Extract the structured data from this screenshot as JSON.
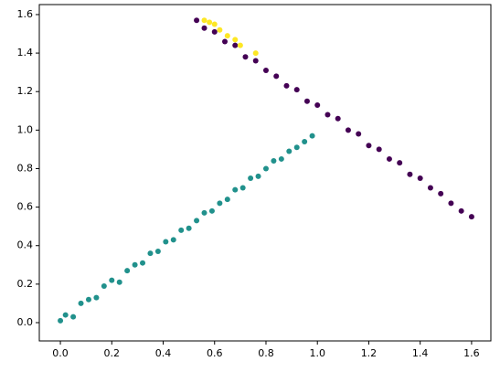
{
  "chart_data": {
    "type": "scatter",
    "xlim": [
      -0.082,
      1.675
    ],
    "ylim": [
      -0.095,
      1.652
    ],
    "xticks": [
      {
        "value": 0,
        "label": "0.0"
      },
      {
        "value": 0.2,
        "label": "0.2"
      },
      {
        "value": 0.4,
        "label": "0.4"
      },
      {
        "value": 0.6,
        "label": "0.6"
      },
      {
        "value": 0.8,
        "label": "0.8"
      },
      {
        "value": 1,
        "label": "1.0"
      },
      {
        "value": 1.2,
        "label": "1.2"
      },
      {
        "value": 1.4,
        "label": "1.4"
      },
      {
        "value": 1.6,
        "label": "1.6"
      }
    ],
    "yticks": [
      {
        "value": 0,
        "label": "0.0"
      },
      {
        "value": 0.2,
        "label": "0.2"
      },
      {
        "value": 0.4,
        "label": "0.4"
      },
      {
        "value": 0.6,
        "label": "0.6"
      },
      {
        "value": 0.8,
        "label": "0.8"
      },
      {
        "value": 1,
        "label": "1.0"
      },
      {
        "value": 1.2,
        "label": "1.2"
      },
      {
        "value": 1.4,
        "label": "1.4"
      },
      {
        "value": 1.6,
        "label": "1.6"
      }
    ],
    "grid": false,
    "series": [
      {
        "color": "#21918c",
        "x": [
          0.0,
          0.02,
          0.05,
          0.08,
          0.11,
          0.14,
          0.17,
          0.2,
          0.23,
          0.26,
          0.29,
          0.32,
          0.35,
          0.38,
          0.41,
          0.44,
          0.47,
          0.5,
          0.53,
          0.56,
          0.59,
          0.62,
          0.65,
          0.68,
          0.71,
          0.74,
          0.77,
          0.8,
          0.83,
          0.86,
          0.89,
          0.92,
          0.95,
          0.98
        ],
        "y": [
          0.01,
          0.04,
          0.03,
          0.1,
          0.12,
          0.13,
          0.19,
          0.22,
          0.21,
          0.27,
          0.3,
          0.31,
          0.36,
          0.37,
          0.42,
          0.43,
          0.48,
          0.49,
          0.53,
          0.57,
          0.58,
          0.62,
          0.64,
          0.69,
          0.7,
          0.75,
          0.76,
          0.8,
          0.84,
          0.85,
          0.89,
          0.91,
          0.94,
          0.97
        ]
      },
      {
        "color": "#440154",
        "x": [
          0.53,
          0.56,
          0.6,
          0.64,
          0.68,
          0.72,
          0.76,
          0.8,
          0.84,
          0.88,
          0.92,
          0.96,
          1.0,
          1.04,
          1.08,
          1.12,
          1.16,
          1.2,
          1.24,
          1.28,
          1.32,
          1.36,
          1.4,
          1.44,
          1.48,
          1.52,
          1.56,
          1.6
        ],
        "y": [
          1.57,
          1.53,
          1.51,
          1.46,
          1.44,
          1.38,
          1.36,
          1.31,
          1.28,
          1.23,
          1.21,
          1.15,
          1.13,
          1.08,
          1.06,
          1.0,
          0.98,
          0.92,
          0.9,
          0.85,
          0.83,
          0.77,
          0.75,
          0.7,
          0.67,
          0.62,
          0.58,
          0.55
        ]
      },
      {
        "color": "#fde725",
        "x": [
          0.56,
          0.58,
          0.6,
          0.62,
          0.65,
          0.68,
          0.7,
          0.76
        ],
        "y": [
          1.57,
          1.56,
          1.55,
          1.52,
          1.49,
          1.47,
          1.44,
          1.4
        ]
      }
    ]
  }
}
